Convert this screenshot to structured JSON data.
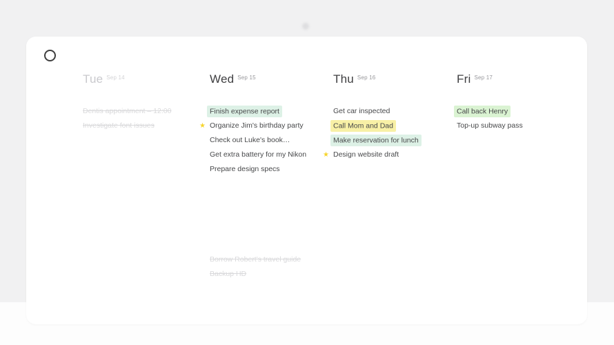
{
  "colors": {
    "page_bg": "#f1f1f2",
    "bottom_bg": "#fdfdfd",
    "card_bg": "#ffffff",
    "day_text": "#3e3e40",
    "date_text": "#97979b",
    "past_day_text": "#c9c9cd",
    "past_date_text": "#d3d3d6",
    "task_text": "#47484a",
    "done_text": "#d9d9db",
    "star": "#f6d42c",
    "highlight_mint": "#ddf1e6",
    "highlight_yellow": "#f8f0a6",
    "highlight_green": "#daf3d2"
  },
  "icons": {
    "logo": "ring-icon",
    "top_dot": "dot-icon",
    "star": "★"
  },
  "columns": [
    {
      "day": "Tue",
      "date": "Sep 14",
      "tasks": [
        {
          "text": "Dentis appointment – 12:00"
        },
        {
          "text": "Investigate font issues"
        }
      ]
    },
    {
      "day": "Wed",
      "date": "Sep 15",
      "tasks": [
        {
          "text": "Finish expense report"
        },
        {
          "text": "Organize Jim's birthday party"
        },
        {
          "text": "Check out Luke's book…"
        },
        {
          "text": "Get extra battery for my Nikon"
        },
        {
          "text": "Prepare design specs"
        }
      ],
      "bottom_tasks": [
        {
          "text": "Borrow Robert's travel guide"
        },
        {
          "text": "Backup HD"
        }
      ]
    },
    {
      "day": "Thu",
      "date": "Sep 16",
      "tasks": [
        {
          "text": "Get car inspected"
        },
        {
          "text": "Call Mom and Dad"
        },
        {
          "text": "Make reservation for lunch"
        },
        {
          "text": "Design website draft"
        }
      ]
    },
    {
      "day": "Fri",
      "date": "Sep 17",
      "tasks": [
        {
          "text": "Call back Henry"
        },
        {
          "text": "Top-up subway pass"
        }
      ]
    }
  ]
}
